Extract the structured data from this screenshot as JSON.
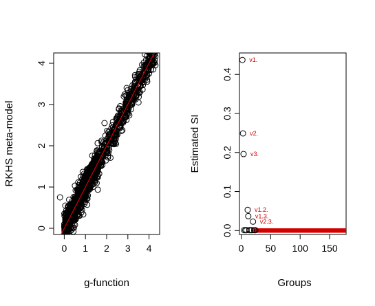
{
  "chart_data": [
    {
      "type": "scatter",
      "title": "",
      "xlabel": "g-function",
      "ylabel": "RKHS meta-model",
      "xlim": [
        -0.5,
        4.5
      ],
      "ylim": [
        -0.15,
        4.25
      ],
      "xticks": [
        "0",
        "1",
        "2",
        "3",
        "4"
      ],
      "yticks": [
        "0",
        "1",
        "2",
        "3",
        "4"
      ],
      "reference_line": {
        "slope": 1,
        "intercept": 0,
        "color": "#d40000"
      },
      "point_style": "open-circle",
      "point_color": "#000000",
      "series": [
        {
          "points": [
            [
              0.0,
              0.1
            ],
            [
              0.1,
              0.35
            ],
            [
              0.2,
              0.05
            ],
            [
              0.3,
              0.45
            ],
            [
              0.4,
              0.25
            ],
            [
              0.5,
              0.6
            ],
            [
              0.6,
              0.4
            ],
            [
              0.7,
              0.85
            ],
            [
              0.8,
              0.65
            ],
            [
              0.9,
              1.0
            ],
            [
              1.0,
              0.8
            ],
            [
              1.1,
              1.2
            ],
            [
              1.2,
              1.0
            ],
            [
              1.3,
              1.4
            ],
            [
              1.4,
              1.2
            ],
            [
              1.5,
              1.6
            ],
            [
              1.6,
              1.45
            ],
            [
              1.7,
              1.85
            ],
            [
              1.8,
              1.6
            ],
            [
              1.9,
              2.05
            ],
            [
              2.0,
              1.85
            ],
            [
              2.1,
              2.25
            ],
            [
              2.2,
              2.05
            ],
            [
              2.3,
              2.45
            ],
            [
              2.4,
              2.2
            ],
            [
              2.5,
              2.65
            ],
            [
              2.6,
              2.45
            ],
            [
              2.7,
              2.85
            ],
            [
              2.8,
              2.6
            ],
            [
              2.9,
              3.05
            ],
            [
              3.0,
              2.85
            ],
            [
              3.1,
              3.25
            ],
            [
              3.2,
              3.0
            ],
            [
              3.3,
              3.45
            ],
            [
              3.4,
              3.2
            ],
            [
              3.5,
              3.6
            ],
            [
              3.6,
              3.45
            ],
            [
              3.7,
              3.8
            ],
            [
              3.8,
              3.6
            ],
            [
              3.9,
              3.95
            ],
            [
              4.0,
              3.75
            ],
            [
              4.1,
              4.1
            ],
            [
              4.2,
              3.85
            ],
            [
              4.3,
              3.95
            ],
            [
              -0.2,
              0.75
            ],
            [
              0.05,
              0.55
            ],
            [
              0.3,
              0.0
            ],
            [
              1.9,
              2.55
            ],
            [
              3.0,
              3.35
            ],
            [
              3.5,
              3.05
            ]
          ]
        }
      ]
    },
    {
      "type": "scatter",
      "title": "",
      "xlabel": "Groups",
      "ylabel": "Estimated SI",
      "xlim": [
        -3,
        178
      ],
      "ylim": [
        -0.01,
        0.455
      ],
      "xticks": [
        "0",
        "50",
        "100",
        "150"
      ],
      "yticks": [
        "0.0",
        "0.1",
        "0.2",
        "0.3",
        "0.4"
      ],
      "point_style": "open-circle",
      "point_color": "#000000",
      "label_color": "#d40000",
      "series": [
        {
          "points": [
            {
              "x": 2,
              "y": 0.437,
              "label": "v1."
            },
            {
              "x": 3,
              "y": 0.249,
              "label": "v2."
            },
            {
              "x": 4,
              "y": 0.196,
              "label": "v3."
            },
            {
              "x": 11,
              "y": 0.053,
              "label": "v1.2."
            },
            {
              "x": 12,
              "y": 0.037,
              "label": "v1.3."
            },
            {
              "x": 20,
              "y": 0.023,
              "label": "v2.3."
            },
            {
              "x": 5,
              "y": 0.001,
              "label": ""
            },
            {
              "x": 7,
              "y": 0.001,
              "label": ""
            },
            {
              "x": 9,
              "y": 0.001,
              "label": ""
            },
            {
              "x": 14,
              "y": 0.001,
              "label": ""
            },
            {
              "x": 16,
              "y": 0.001,
              "label": ""
            },
            {
              "x": 18,
              "y": 0.001,
              "label": ""
            },
            {
              "x": 22,
              "y": 0.001,
              "label": ""
            },
            {
              "x": 24,
              "y": 0.001,
              "label": ""
            }
          ],
          "tail": {
            "x_from": 25,
            "x_to": 176,
            "y": 0.0
          }
        }
      ]
    }
  ]
}
